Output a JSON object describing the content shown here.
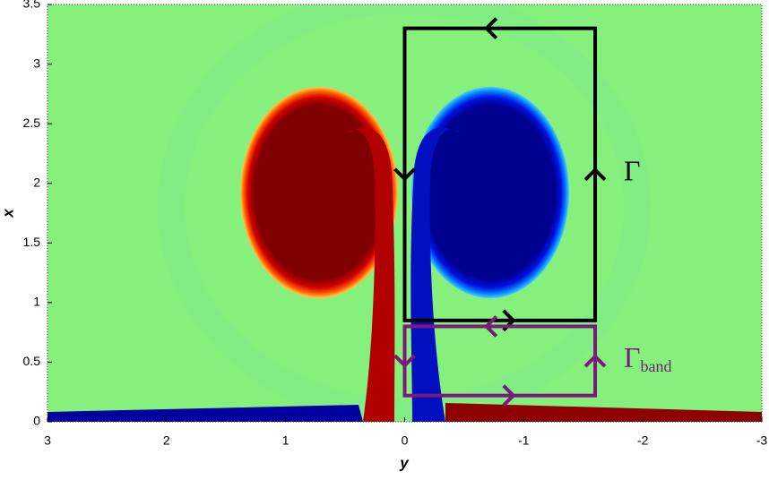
{
  "chart_data": {
    "type": "heatmap",
    "x_label": "y",
    "y_label": "x",
    "xlim": [
      3,
      -3
    ],
    "xticks": [
      3,
      2,
      1,
      0,
      -1,
      -2,
      -3
    ],
    "ylim": [
      0,
      3.5
    ],
    "yticks": [
      0,
      0.5,
      1,
      1.5,
      2,
      2.5,
      3,
      3.5
    ],
    "grid": false,
    "contours": [
      {
        "label": "Γ",
        "color": "#000000",
        "y": [
          0,
          -1.6
        ],
        "x": [
          0.85,
          3.3
        ]
      },
      {
        "label": "Γ",
        "subscript": "band",
        "color": "#7a1a7a",
        "y": [
          0,
          -1.6
        ],
        "x": [
          0.22,
          0.8
        ]
      }
    ]
  }
}
